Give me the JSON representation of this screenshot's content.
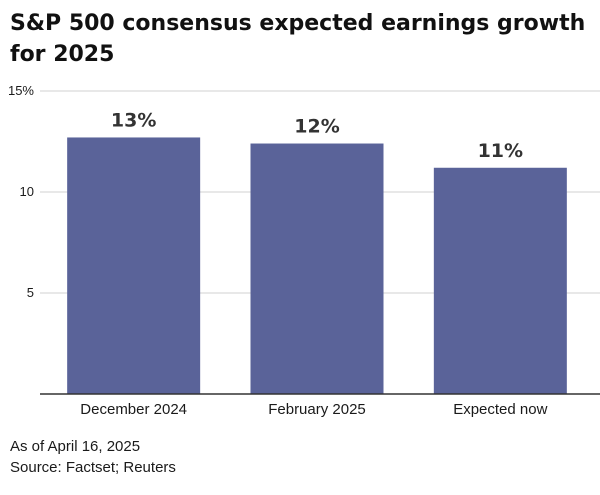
{
  "title": "S&P 500 consensus expected earnings growth for 2025",
  "footnotes": {
    "date": "As of April 16, 2025",
    "source": "Source: Factset; Reuters"
  },
  "colors": {
    "bar": "#5a6399",
    "grid": "#d0d0d0",
    "axis": "#333333",
    "text": "#1a1a1a"
  },
  "chart_data": {
    "type": "bar",
    "categories": [
      "December 2024",
      "February 2025",
      "Expected now"
    ],
    "values": [
      12.7,
      12.4,
      11.2
    ],
    "data_labels": [
      "13%",
      "12%",
      "11%"
    ],
    "ylim": [
      0,
      15
    ],
    "yticks": [
      {
        "value": 5,
        "label": "5"
      },
      {
        "value": 10,
        "label": "10"
      },
      {
        "value": 15,
        "label": "15%"
      }
    ],
    "grid": true,
    "xlabel": "",
    "ylabel": ""
  }
}
